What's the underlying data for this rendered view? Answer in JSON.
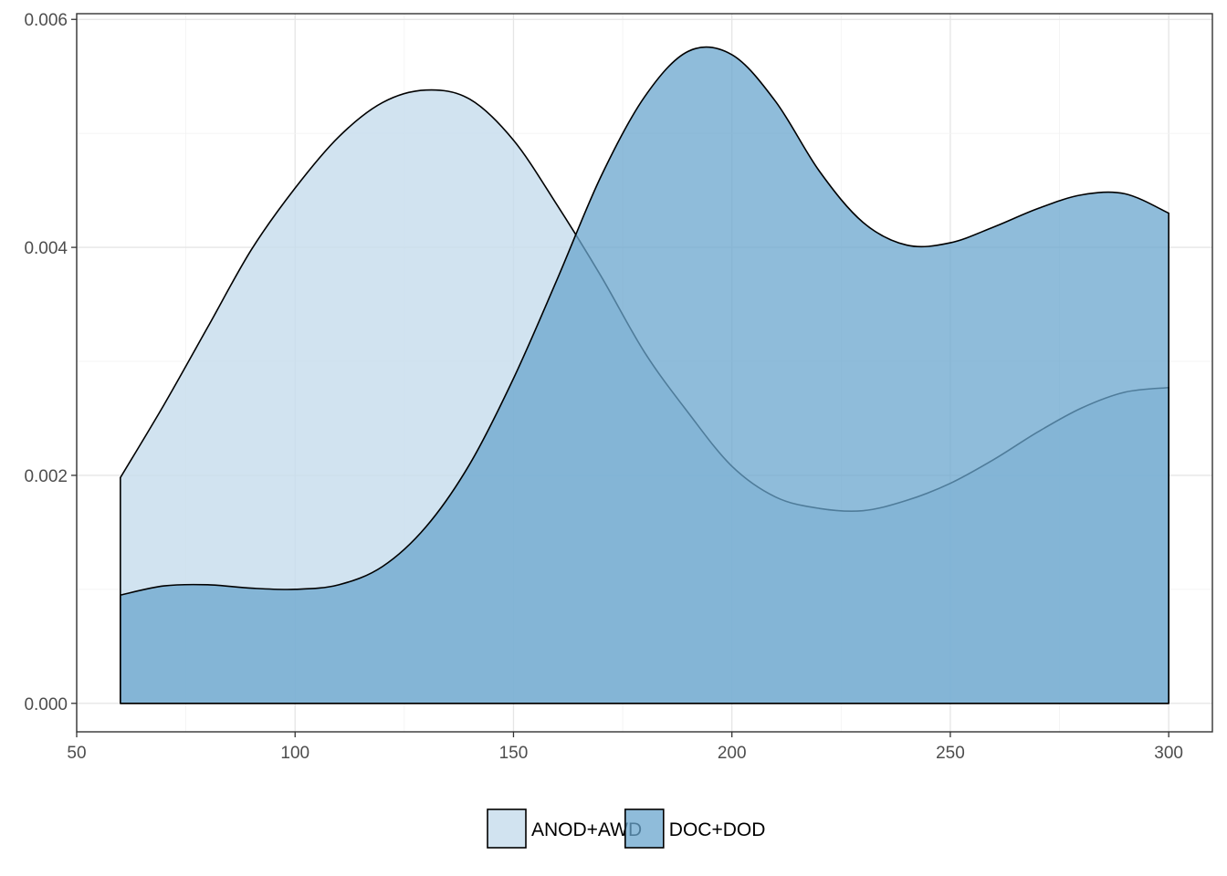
{
  "chart_data": {
    "type": "area",
    "subtype": "density",
    "title": "",
    "xlabel": "",
    "ylabel": "",
    "xlim": [
      50,
      310
    ],
    "ylim": [
      -0.00025,
      0.00605
    ],
    "x_ticks": [
      50,
      100,
      150,
      200,
      250,
      300
    ],
    "x_tick_labels": [
      "50",
      "100",
      "150",
      "200",
      "250",
      "300"
    ],
    "y_ticks": [
      0,
      0.002,
      0.004,
      0.006
    ],
    "y_tick_labels": [
      "0.000",
      "0.002",
      "0.004",
      "0.006"
    ],
    "grid": true,
    "legend_position": "bottom",
    "series": [
      {
        "name": "ANOD+AWD",
        "color": "#c6dcec",
        "x": [
          60,
          70,
          80,
          90,
          100,
          110,
          120,
          130,
          140,
          150,
          160,
          170,
          180,
          190,
          200,
          210,
          220,
          230,
          240,
          250,
          260,
          270,
          280,
          290,
          300
        ],
        "y": [
          0.00198,
          0.00262,
          0.0033,
          0.00398,
          0.00452,
          0.00497,
          0.00527,
          0.00538,
          0.0053,
          0.00494,
          0.00437,
          0.00375,
          0.00308,
          0.00255,
          0.00208,
          0.00181,
          0.00171,
          0.00169,
          0.00178,
          0.00193,
          0.00214,
          0.00238,
          0.00259,
          0.00273,
          0.00277
        ]
      },
      {
        "name": "DOC+DOD",
        "color": "#6aa5cd",
        "x": [
          60,
          70,
          80,
          90,
          100,
          110,
          120,
          130,
          140,
          150,
          160,
          170,
          180,
          190,
          200,
          210,
          220,
          230,
          240,
          250,
          260,
          270,
          280,
          290,
          300
        ],
        "y": [
          0.00095,
          0.00103,
          0.00104,
          0.00101,
          0.001,
          0.00104,
          0.0012,
          0.00155,
          0.0021,
          0.00285,
          0.00372,
          0.00462,
          0.00532,
          0.00572,
          0.00569,
          0.00528,
          0.00467,
          0.00422,
          0.00402,
          0.00404,
          0.00418,
          0.00434,
          0.00446,
          0.00447,
          0.0043
        ]
      }
    ]
  }
}
